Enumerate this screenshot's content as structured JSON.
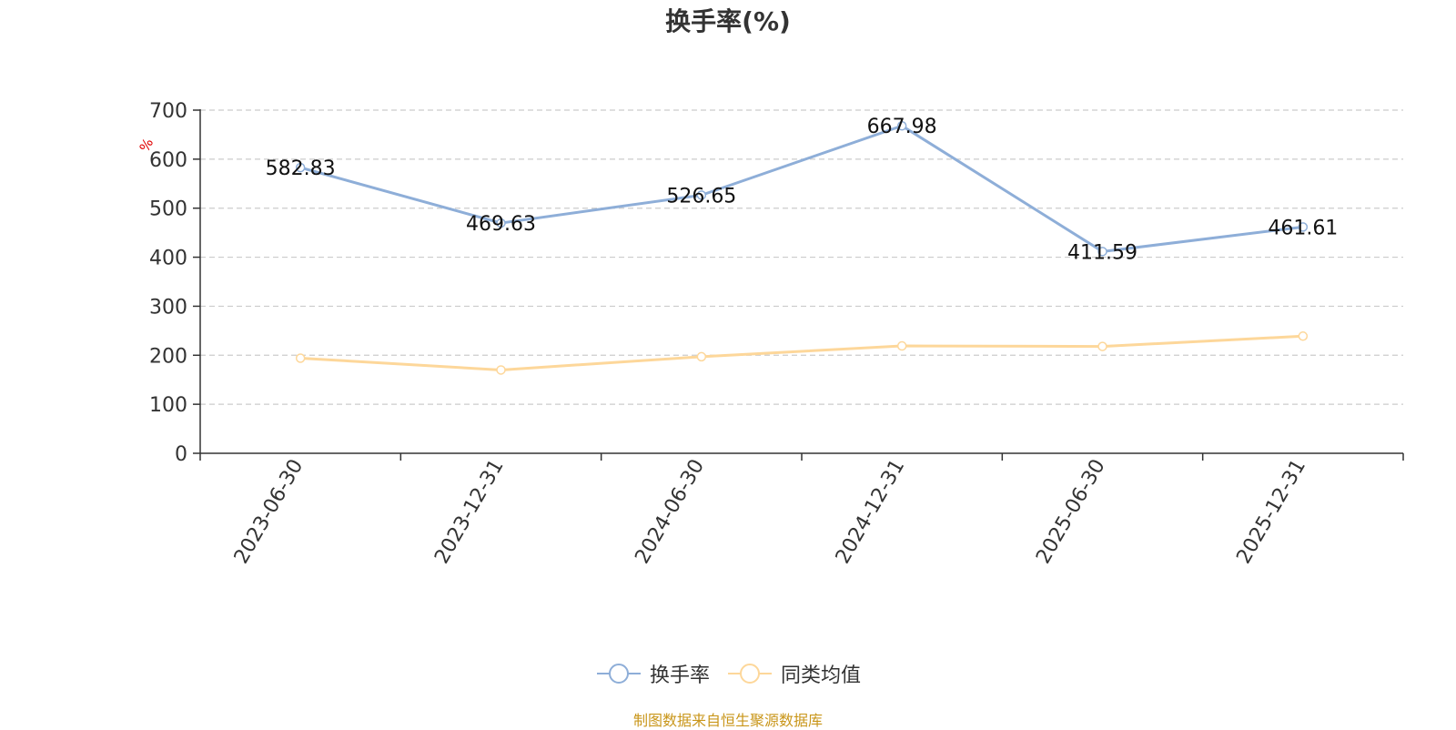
{
  "chart_data": {
    "type": "line",
    "title": "换手率(%)",
    "ylabel": "%",
    "xlabel": "",
    "ylim": [
      0,
      700
    ],
    "yticks": [
      0,
      100,
      200,
      300,
      400,
      500,
      600,
      700
    ],
    "grid": true,
    "legend_position": "bottom-center",
    "categories": [
      "2023-06-30",
      "2023-12-31",
      "2024-06-30",
      "2024-12-31",
      "2025-06-30",
      "2025-12-31"
    ],
    "series": [
      {
        "name": "换手率",
        "color": "#8eaed8",
        "values": [
          582.83,
          469.63,
          526.65,
          667.98,
          411.59,
          461.61
        ],
        "labels": [
          "582.83",
          "469.63",
          "526.65",
          "667.98",
          "411.59",
          "461.61"
        ]
      },
      {
        "name": "同类均值",
        "color": "#fdd79a",
        "values": [
          194,
          170,
          197,
          219,
          218,
          239
        ]
      }
    ]
  },
  "footer": {
    "source": "制图数据来自恒生聚源数据库"
  }
}
